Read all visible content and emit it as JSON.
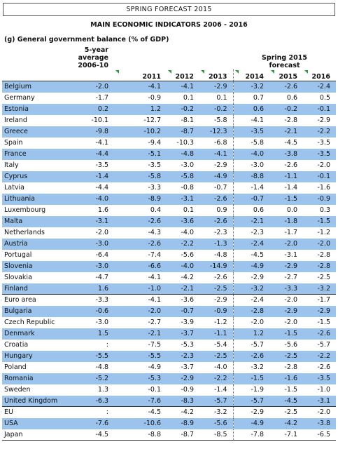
{
  "header": {
    "banner": "SPRING FORECAST 2015",
    "title": "MAIN ECONOMIC INDICATORS 2006 - 2016",
    "subtitle": "(g)  General government balance (% of GDP)"
  },
  "table": {
    "average_header": [
      "5-year",
      "average",
      "2006-10"
    ],
    "forecast_header": [
      "Spring 2015",
      "forecast"
    ],
    "years": [
      "2011",
      "2012",
      "2013",
      "2014",
      "2015",
      "2016"
    ],
    "rows": [
      [
        "Belgium",
        "-2.0",
        "-4.1",
        "-4.1",
        "-2.9",
        "-3.2",
        "-2.6",
        "-2.4"
      ],
      [
        "Germany",
        "-1.7",
        "-0.9",
        "0.1",
        "0.1",
        "0.7",
        "0.6",
        "0.5"
      ],
      [
        "Estonia",
        "0.2",
        "1.2",
        "-0.2",
        "-0.2",
        "0.6",
        "-0.2",
        "-0.1"
      ],
      [
        "Ireland",
        "-10.1",
        "-12.7",
        "-8.1",
        "-5.8",
        "-4.1",
        "-2.8",
        "-2.9"
      ],
      [
        "Greece",
        "-9.8",
        "-10.2",
        "-8.7",
        "-12.3",
        "-3.5",
        "-2.1",
        "-2.2"
      ],
      [
        "Spain",
        "-4.1",
        "-9.4",
        "-10.3",
        "-6.8",
        "-5.8",
        "-4.5",
        "-3.5"
      ],
      [
        "France",
        "-4.4",
        "-5.1",
        "-4.8",
        "-4.1",
        "-4.0",
        "-3.8",
        "-3.5"
      ],
      [
        "Italy",
        "-3.5",
        "-3.5",
        "-3.0",
        "-2.9",
        "-3.0",
        "-2.6",
        "-2.0"
      ],
      [
        "Cyprus",
        "-1.4",
        "-5.8",
        "-5.8",
        "-4.9",
        "-8.8",
        "-1.1",
        "-0.1"
      ],
      [
        "Latvia",
        "-4.4",
        "-3.3",
        "-0.8",
        "-0.7",
        "-1.4",
        "-1.4",
        "-1.6"
      ],
      [
        "Lithuania",
        "-4.0",
        "-8.9",
        "-3.1",
        "-2.6",
        "-0.7",
        "-1.5",
        "-0.9"
      ],
      [
        "Luxembourg",
        "1.6",
        "0.4",
        "0.1",
        "0.9",
        "0.6",
        "0.0",
        "0.3"
      ],
      [
        "Malta",
        "-3.1",
        "-2.6",
        "-3.6",
        "-2.6",
        "-2.1",
        "-1.8",
        "-1.5"
      ],
      [
        "Netherlands",
        "-2.0",
        "-4.3",
        "-4.0",
        "-2.3",
        "-2.3",
        "-1.7",
        "-1.2"
      ],
      [
        "Austria",
        "-3.0",
        "-2.6",
        "-2.2",
        "-1.3",
        "-2.4",
        "-2.0",
        "-2.0"
      ],
      [
        "Portugal",
        "-6.4",
        "-7.4",
        "-5.6",
        "-4.8",
        "-4.5",
        "-3.1",
        "-2.8"
      ],
      [
        "Slovenia",
        "-3.0",
        "-6.6",
        "-4.0",
        "-14.9",
        "-4.9",
        "-2.9",
        "-2.8"
      ],
      [
        "Slovakia",
        "-4.7",
        "-4.1",
        "-4.2",
        "-2.6",
        "-2.9",
        "-2.7",
        "-2.5"
      ],
      [
        "Finland",
        "1.6",
        "-1.0",
        "-2.1",
        "-2.5",
        "-3.2",
        "-3.3",
        "-3.2"
      ],
      [
        "Euro area",
        "-3.3",
        "-4.1",
        "-3.6",
        "-2.9",
        "-2.4",
        "-2.0",
        "-1.7"
      ],
      [
        "Bulgaria",
        "-0.6",
        "-2.0",
        "-0.7",
        "-0.9",
        "-2.8",
        "-2.9",
        "-2.9"
      ],
      [
        "Czech Republic",
        "-3.0",
        "-2.7",
        "-3.9",
        "-1.2",
        "-2.0",
        "-2.0",
        "-1.5"
      ],
      [
        "Denmark",
        "1.5",
        "-2.1",
        "-3.7",
        "-1.1",
        "1.2",
        "-1.5",
        "-2.6"
      ],
      [
        "Croatia",
        ":",
        "-7.5",
        "-5.3",
        "-5.4",
        "-5.7",
        "-5.6",
        "-5.7"
      ],
      [
        "Hungary",
        "-5.5",
        "-5.5",
        "-2.3",
        "-2.5",
        "-2.6",
        "-2.5",
        "-2.2"
      ],
      [
        "Poland",
        "-4.8",
        "-4.9",
        "-3.7",
        "-4.0",
        "-3.2",
        "-2.8",
        "-2.6"
      ],
      [
        "Romania",
        "-5.2",
        "-5.3",
        "-2.9",
        "-2.2",
        "-1.5",
        "-1.6",
        "-3.5"
      ],
      [
        "Sweden",
        "1.3",
        "-0.1",
        "-0.9",
        "-1.4",
        "-1.9",
        "-1.5",
        "-1.0"
      ],
      [
        "United Kingdom",
        "-6.3",
        "-7.6",
        "-8.3",
        "-5.7",
        "-5.7",
        "-4.5",
        "-3.1"
      ],
      [
        "EU",
        ":",
        "-4.5",
        "-4.2",
        "-3.2",
        "-2.9",
        "-2.5",
        "-2.0"
      ],
      [
        "USA",
        "-7.6",
        "-10.6",
        "-8.9",
        "-5.6",
        "-4.9",
        "-4.2",
        "-3.8"
      ],
      [
        "Japan",
        "-4.5",
        "-8.8",
        "-8.7",
        "-8.5",
        "-7.8",
        "-7.1",
        "-6.5"
      ]
    ]
  }
}
